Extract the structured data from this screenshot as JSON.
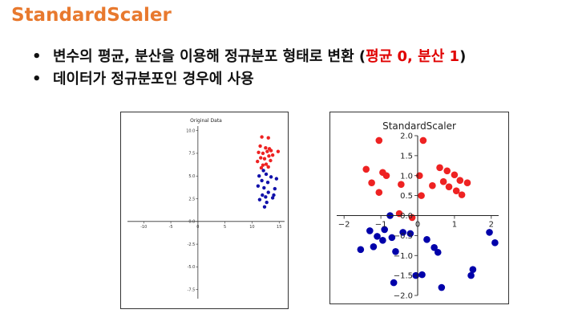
{
  "slide": {
    "title": "StandardScaler",
    "bullets": [
      {
        "prefix": "변수의 평균, 분산을 이용해 정규분포 형태로 변환 (",
        "highlight": "평균 0, 분산 1",
        "suffix": ")"
      },
      {
        "prefix": "데이터가 정규분포인 경우에 사용",
        "highlight": "",
        "suffix": ""
      }
    ],
    "colors": {
      "title": "#e8792e",
      "highlight": "#e00000"
    }
  },
  "chart_data": [
    {
      "type": "scatter",
      "title": "Original Data",
      "xlim": [
        -13,
        16
      ],
      "ylim": [
        -8.5,
        10.5
      ],
      "xticks": [
        -10,
        -5,
        0,
        5,
        10,
        15
      ],
      "yticks": [
        -7.5,
        -5.0,
        -2.5,
        0.0,
        2.5,
        5.0,
        7.5,
        10.0
      ],
      "grid": false,
      "series": [
        {
          "color": "#ee2222",
          "points": [
            [
              11.8,
              9.3
            ],
            [
              13.0,
              9.2
            ],
            [
              11.5,
              8.3
            ],
            [
              12.5,
              8.1
            ],
            [
              13.2,
              8.0
            ],
            [
              11.2,
              7.6
            ],
            [
              12.0,
              7.5
            ],
            [
              12.8,
              7.7
            ],
            [
              13.5,
              7.8
            ],
            [
              14.8,
              7.7
            ],
            [
              11.6,
              7.0
            ],
            [
              12.3,
              6.9
            ],
            [
              13.1,
              7.2
            ],
            [
              13.8,
              7.3
            ],
            [
              11.0,
              6.6
            ],
            [
              12.6,
              6.3
            ],
            [
              13.4,
              6.7
            ],
            [
              12.0,
              6.2
            ],
            [
              11.7,
              5.9
            ],
            [
              13.0,
              6.0
            ]
          ]
        },
        {
          "color": "#1111aa",
          "points": [
            [
              12.1,
              5.6
            ],
            [
              11.3,
              5.0
            ],
            [
              12.6,
              5.2
            ],
            [
              13.5,
              4.9
            ],
            [
              14.5,
              4.7
            ],
            [
              11.8,
              4.5
            ],
            [
              12.9,
              4.3
            ],
            [
              11.1,
              3.9
            ],
            [
              12.2,
              3.7
            ],
            [
              14.2,
              3.6
            ],
            [
              13.0,
              3.2
            ],
            [
              11.9,
              2.9
            ],
            [
              12.5,
              2.7
            ],
            [
              13.8,
              2.6
            ],
            [
              14.0,
              2.9
            ],
            [
              11.4,
              2.4
            ],
            [
              12.7,
              2.1
            ],
            [
              12.3,
              1.6
            ]
          ]
        }
      ]
    },
    {
      "type": "scatter",
      "title": "StandardScaler",
      "xlim": [
        -2.2,
        2.2
      ],
      "ylim": [
        -2.0,
        2.0
      ],
      "xticks": [
        -2,
        -1,
        0,
        1,
        2
      ],
      "xtick_labels": [
        "−2",
        "−1",
        "0",
        "1",
        "2"
      ],
      "yticks": [
        -2.0,
        -1.5,
        -1.0,
        -0.5,
        0.0,
        0.5,
        1.0,
        1.5,
        2.0
      ],
      "ytick_labels": [
        "−2.0",
        "−1.5",
        "−1.0",
        "−0.5",
        "0.0",
        "0.5",
        "1.0",
        "1.5",
        "2.0"
      ],
      "grid": false,
      "series": [
        {
          "color": "#ee2222",
          "points": [
            [
              -1.05,
              1.88
            ],
            [
              0.15,
              1.88
            ],
            [
              -1.4,
              1.16
            ],
            [
              -0.95,
              1.08
            ],
            [
              -0.85,
              1.0
            ],
            [
              0.05,
              1.0
            ],
            [
              -1.25,
              0.82
            ],
            [
              -0.45,
              0.78
            ],
            [
              0.6,
              1.2
            ],
            [
              0.8,
              1.12
            ],
            [
              1.0,
              1.02
            ],
            [
              1.15,
              0.88
            ],
            [
              0.7,
              0.85
            ],
            [
              0.4,
              0.75
            ],
            [
              1.35,
              0.82
            ],
            [
              0.85,
              0.72
            ],
            [
              1.05,
              0.62
            ],
            [
              -1.05,
              0.58
            ],
            [
              0.1,
              0.5
            ],
            [
              1.2,
              0.52
            ],
            [
              -0.5,
              0.05
            ],
            [
              -0.15,
              -0.05
            ]
          ]
        },
        {
          "color": "#0000aa",
          "points": [
            [
              -0.75,
              0.0
            ],
            [
              -1.3,
              -0.38
            ],
            [
              -1.1,
              -0.52
            ],
            [
              -0.95,
              -0.62
            ],
            [
              -1.2,
              -0.78
            ],
            [
              -0.7,
              -0.55
            ],
            [
              -0.4,
              -0.42
            ],
            [
              -0.2,
              -0.45
            ],
            [
              0.25,
              -0.6
            ],
            [
              0.45,
              -0.8
            ],
            [
              0.55,
              -0.92
            ],
            [
              -0.6,
              -0.9
            ],
            [
              -1.55,
              -0.85
            ],
            [
              1.95,
              -0.42
            ],
            [
              2.1,
              -0.68
            ],
            [
              1.5,
              -1.35
            ],
            [
              1.45,
              -1.5
            ],
            [
              -0.05,
              -1.5
            ],
            [
              0.12,
              -1.48
            ],
            [
              -0.65,
              -1.68
            ],
            [
              0.65,
              -1.8
            ],
            [
              -0.9,
              -0.35
            ]
          ]
        }
      ]
    }
  ]
}
